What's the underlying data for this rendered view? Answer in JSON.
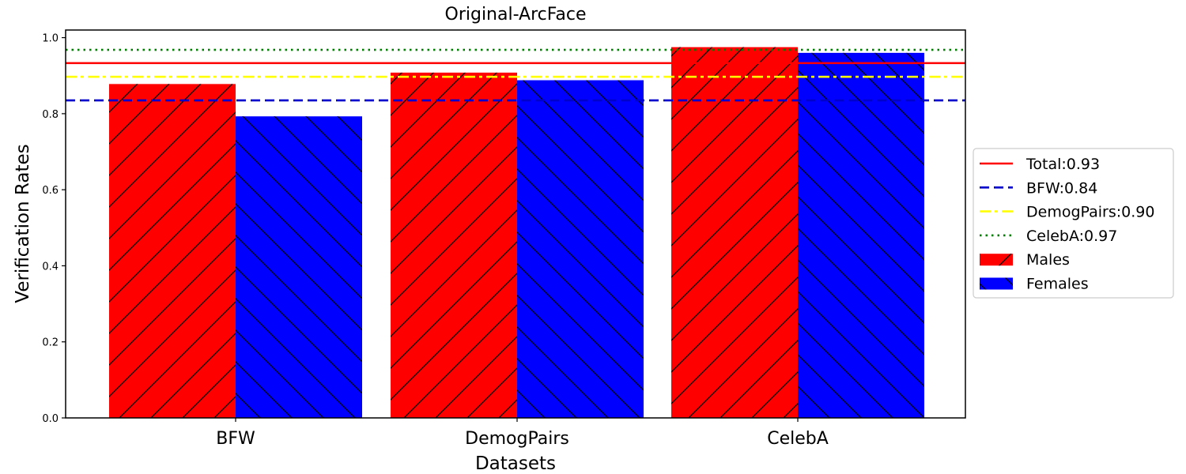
{
  "chart_data": {
    "type": "bar",
    "title": "Original-ArcFace",
    "xlabel": "Datasets",
    "ylabel": "Verification Rates",
    "categories": [
      "BFW",
      "DemogPairs",
      "CelebA"
    ],
    "ylim": [
      0.0,
      1.02
    ],
    "yticks": [
      "0.0",
      "0.2",
      "0.4",
      "0.6",
      "0.8",
      "1.0"
    ],
    "series": [
      {
        "name": "Males",
        "color": "#ff0000",
        "hatch": "forward-diagonal",
        "values": [
          0.878,
          0.908,
          0.975
        ]
      },
      {
        "name": "Females",
        "color": "#0000ff",
        "hatch": "back-diagonal",
        "values": [
          0.793,
          0.888,
          0.96
        ]
      }
    ],
    "reference_lines": [
      {
        "label": "Total:0.93",
        "value": 0.933,
        "color": "#ff0000",
        "style": "solid"
      },
      {
        "label": "BFW:0.84",
        "value": 0.835,
        "color": "#0000cc",
        "style": "dashed"
      },
      {
        "label": "DemogPairs:0.90",
        "value": 0.897,
        "color": "#ffff00",
        "style": "dashdot"
      },
      {
        "label": "CelebA:0.97",
        "value": 0.968,
        "color": "#008000",
        "style": "dotted"
      }
    ],
    "legend_position": "right",
    "grid": false
  }
}
